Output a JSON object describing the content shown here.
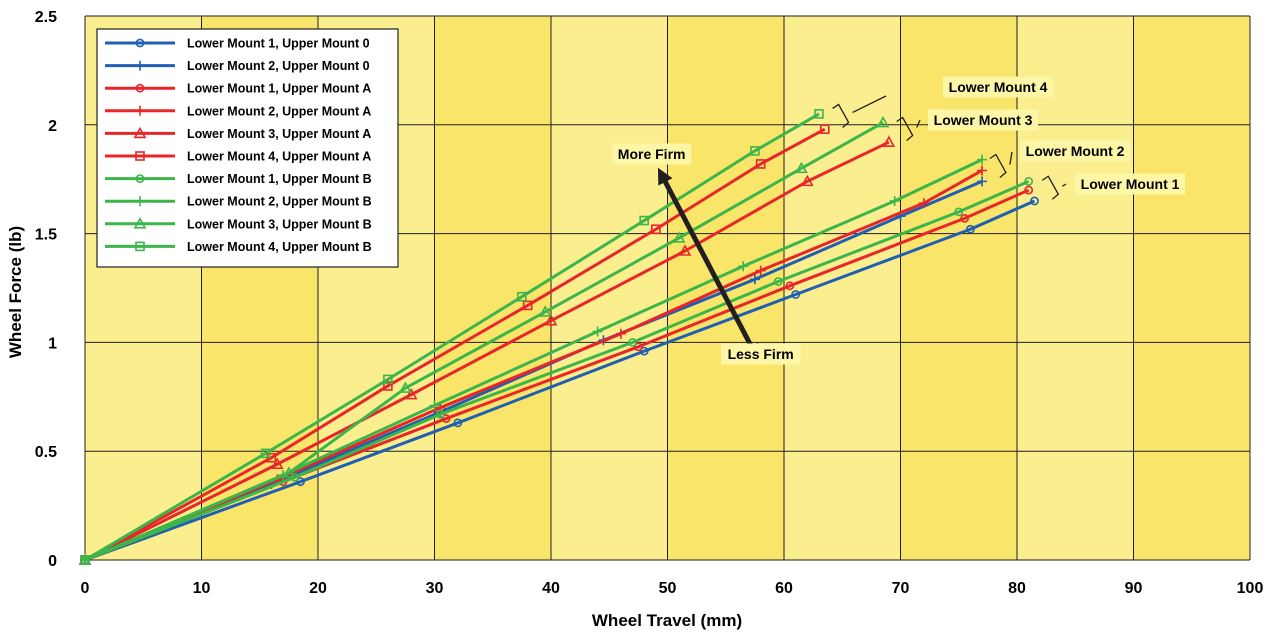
{
  "chart_data": {
    "type": "line",
    "xlabel": "Wheel Travel (mm)",
    "ylabel": "Wheel Force (lb)",
    "xlim": [
      0,
      100
    ],
    "ylim": [
      0,
      2.5
    ],
    "xticks": [
      "0",
      "10",
      "20",
      "30",
      "40",
      "50",
      "60",
      "70",
      "80",
      "90",
      "100"
    ],
    "yticks": [
      "0",
      "0.5",
      "1",
      "1.5",
      "2",
      "2.5"
    ],
    "grid": true,
    "legend_position": "top-left",
    "colors": {
      "upper_mount_0": "#1f5fb4",
      "upper_mount_a": "#e8262a",
      "upper_mount_b": "#3cb54a",
      "plot_bg": "#fbee8f"
    },
    "series": [
      {
        "name": "Lower Mount 1, Upper Mount 0",
        "color": "#1f5fb4",
        "marker": "circle",
        "points": [
          [
            0,
            0
          ],
          [
            18.5,
            0.36
          ],
          [
            32,
            0.63
          ],
          [
            48,
            0.96
          ],
          [
            61,
            1.22
          ],
          [
            76,
            1.52
          ],
          [
            81.5,
            1.65
          ]
        ]
      },
      {
        "name": "Lower Mount 2, Upper Mount 0",
        "color": "#1f5fb4",
        "marker": "plus",
        "points": [
          [
            0,
            0
          ],
          [
            16,
            0.35
          ],
          [
            30.5,
            0.68
          ],
          [
            44.5,
            1.01
          ],
          [
            57.5,
            1.29
          ],
          [
            70,
            1.58
          ],
          [
            77,
            1.74
          ]
        ]
      },
      {
        "name": "Lower Mount 1, Upper Mount A",
        "color": "#e8262a",
        "marker": "circle",
        "points": [
          [
            0,
            0
          ],
          [
            17,
            0.36
          ],
          [
            31,
            0.65
          ],
          [
            47.5,
            0.98
          ],
          [
            60.5,
            1.26
          ],
          [
            75.5,
            1.57
          ],
          [
            81,
            1.7
          ]
        ]
      },
      {
        "name": "Lower Mount 2, Upper Mount A",
        "color": "#e8262a",
        "marker": "plus",
        "points": [
          [
            0,
            0
          ],
          [
            16.5,
            0.37
          ],
          [
            30.5,
            0.7
          ],
          [
            46,
            1.04
          ],
          [
            58,
            1.33
          ],
          [
            72,
            1.64
          ],
          [
            77,
            1.79
          ]
        ]
      },
      {
        "name": "Lower Mount 3, Upper Mount A",
        "color": "#e8262a",
        "marker": "triangle",
        "points": [
          [
            0,
            0
          ],
          [
            16.5,
            0.44
          ],
          [
            28,
            0.76
          ],
          [
            40,
            1.1
          ],
          [
            51.5,
            1.42
          ],
          [
            62,
            1.74
          ],
          [
            69,
            1.92
          ]
        ]
      },
      {
        "name": "Lower Mount 4, Upper Mount A",
        "color": "#e8262a",
        "marker": "square",
        "points": [
          [
            0,
            0
          ],
          [
            16,
            0.47
          ],
          [
            26,
            0.8
          ],
          [
            38,
            1.17
          ],
          [
            49,
            1.52
          ],
          [
            58,
            1.82
          ],
          [
            63.5,
            1.98
          ]
        ]
      },
      {
        "name": "Lower Mount 1, Upper Mount B",
        "color": "#3cb54a",
        "marker": "circle",
        "points": [
          [
            0,
            0
          ],
          [
            18,
            0.38
          ],
          [
            30.5,
            0.67
          ],
          [
            47,
            1.0
          ],
          [
            59.5,
            1.28
          ],
          [
            75,
            1.6
          ],
          [
            81,
            1.74
          ]
        ]
      },
      {
        "name": "Lower Mount 2, Upper Mount B",
        "color": "#3cb54a",
        "marker": "plus",
        "points": [
          [
            0,
            0
          ],
          [
            17,
            0.39
          ],
          [
            30,
            0.71
          ],
          [
            44,
            1.05
          ],
          [
            56.5,
            1.35
          ],
          [
            69.5,
            1.65
          ],
          [
            77,
            1.84
          ]
        ]
      },
      {
        "name": "Lower Mount 3, Upper Mount B",
        "color": "#3cb54a",
        "marker": "triangle",
        "points": [
          [
            0,
            0
          ],
          [
            17.5,
            0.4
          ],
          [
            27.5,
            0.79
          ],
          [
            39.5,
            1.14
          ],
          [
            51,
            1.48
          ],
          [
            61.5,
            1.8
          ],
          [
            68.5,
            2.01
          ]
        ]
      },
      {
        "name": "Lower Mount 4, Upper Mount B",
        "color": "#3cb54a",
        "marker": "square",
        "points": [
          [
            0,
            0
          ],
          [
            15.5,
            0.49
          ],
          [
            26,
            0.83
          ],
          [
            37.5,
            1.21
          ],
          [
            48,
            1.56
          ],
          [
            57.5,
            1.88
          ],
          [
            63,
            2.05
          ]
        ]
      }
    ],
    "annotations": [
      {
        "label": "Lower Mount 4",
        "tip": [
          64,
          2.02
        ]
      },
      {
        "label": "Lower Mount 3",
        "tip": [
          69.5,
          1.96
        ]
      },
      {
        "label": "Lower Mount 2",
        "tip": [
          77.5,
          1.79
        ]
      },
      {
        "label": "Lower Mount 1",
        "tip": [
          82,
          1.69
        ]
      },
      {
        "label": "More Firm",
        "tip": [
          49.5,
          1.77
        ]
      },
      {
        "label": "Less Firm",
        "tip": [
          57.5,
          0.95
        ]
      }
    ]
  }
}
